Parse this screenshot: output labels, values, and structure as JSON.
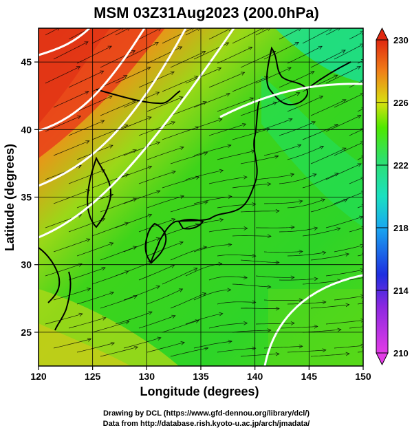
{
  "title": "MSM 03Z31Aug2023 (200.0hPa)",
  "x_axis": {
    "label": "Longitude (degrees)",
    "range": [
      120,
      150
    ],
    "ticks": [
      120,
      125,
      130,
      135,
      140,
      145,
      150
    ]
  },
  "y_axis": {
    "label": "Latitude  (degrees)",
    "range": [
      22.5,
      47.5
    ],
    "ticks": [
      25,
      30,
      35,
      40,
      45
    ]
  },
  "colorbar": {
    "range": [
      210,
      230
    ],
    "ticks": [
      210,
      214,
      218,
      222,
      226,
      230
    ],
    "colors": [
      "#e23ce6",
      "#1e2ee0",
      "#19c8f0",
      "#2fe06a",
      "#4fe800",
      "#f0d818",
      "#f08018",
      "#e02810"
    ]
  },
  "credits": [
    "Drawing by DCL (https://www.gfd-dennou.org/library/dcl/)",
    "Data from http://database.rish.kyoto-u.ac.jp/arch/jmadata/"
  ],
  "map": {
    "field_colors": {
      "warm": "#e8401a",
      "orange": "#f09018",
      "yellow": "#c8d818",
      "green": "#3ed41a",
      "bright_green": "#20e060",
      "teal": "#18e0a0"
    },
    "contour_color": "#ffffff",
    "grid_color": "#000000"
  }
}
